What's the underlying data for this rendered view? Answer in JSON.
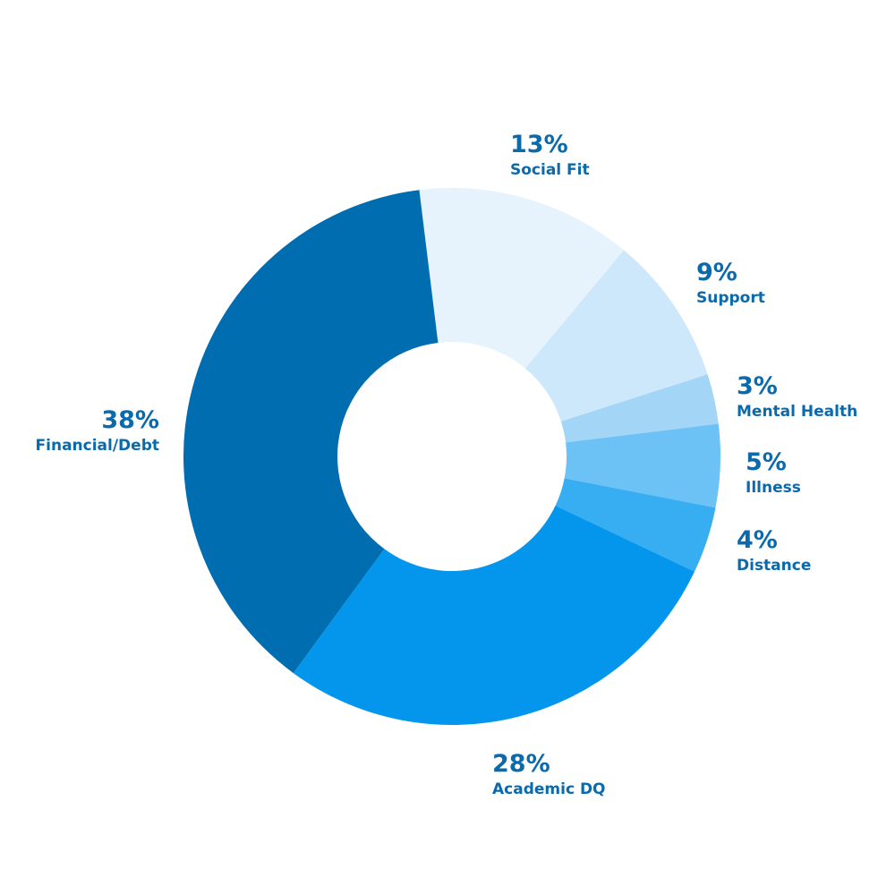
{
  "chart_data": {
    "type": "donut",
    "categories": [
      "Social Fit",
      "Support",
      "Mental Health",
      "Illness",
      "Distance",
      "Academic DQ",
      "Financial/Debt"
    ],
    "values": [
      13,
      9,
      3,
      5,
      4,
      28,
      38
    ],
    "value_labels": [
      "13%",
      "9%",
      "3%",
      "5%",
      "4%",
      "28%",
      "38%"
    ],
    "colors": [
      "#e6f3fc",
      "#cde8fa",
      "#a3d5f7",
      "#6cc1f5",
      "#37adf2",
      "#0496ec",
      "#006db0"
    ]
  }
}
